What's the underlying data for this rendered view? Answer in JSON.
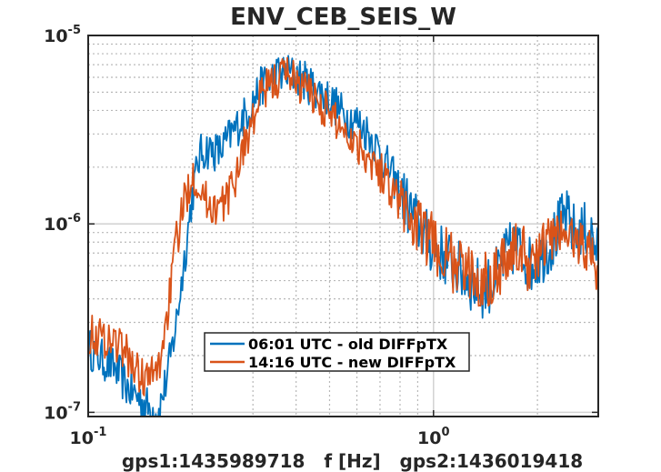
{
  "chart_data": {
    "type": "line",
    "title": "ENV_CEB_SEIS_W",
    "xlabel": "gps1:1435989718   f [Hz]   gps2:1436019418",
    "ylabel": "",
    "xscale": "log",
    "yscale": "log",
    "xlim": [
      0.1,
      3.0
    ],
    "ylim": [
      9.5e-08,
      1e-05
    ],
    "x_ticks": [
      {
        "value": 0.1,
        "base": "10",
        "exp": "-1"
      },
      {
        "value": 1.0,
        "base": "10",
        "exp": "0"
      }
    ],
    "y_ticks": [
      {
        "value": 1e-07,
        "base": "10",
        "exp": "-7"
      },
      {
        "value": 1e-06,
        "base": "10",
        "exp": "-6"
      },
      {
        "value": 1e-05,
        "base": "10",
        "exp": "-5"
      }
    ],
    "grid": true,
    "legend_position": "lower-center",
    "series": [
      {
        "name": "06:01 UTC - old DIFFpTX",
        "color": "#0072BD",
        "x": [
          0.1,
          0.11,
          0.12,
          0.13,
          0.14,
          0.15,
          0.16,
          0.17,
          0.18,
          0.19,
          0.2,
          0.21,
          0.22,
          0.24,
          0.26,
          0.28,
          0.3,
          0.32,
          0.35,
          0.38,
          0.41,
          0.45,
          0.5,
          0.55,
          0.6,
          0.65,
          0.7,
          0.75,
          0.8,
          0.85,
          0.9,
          0.95,
          1.0,
          1.05,
          1.1,
          1.2,
          1.3,
          1.4,
          1.5,
          1.6,
          1.7,
          1.8,
          1.9,
          2.0,
          2.2,
          2.4,
          2.6,
          2.8,
          3.0
        ],
        "y": [
          2.2e-07,
          1.9e-07,
          1.7e-07,
          1.35e-07,
          1.2e-07,
          1.05e-07,
          1e-07,
          1.6e-07,
          3e-07,
          6.5e-07,
          1.4e-06,
          2.3e-06,
          2.5e-06,
          2.4e-06,
          3e-06,
          3.6e-06,
          4.5e-06,
          5.5e-06,
          6.2e-06,
          6.3e-06,
          6e-06,
          5.3e-06,
          4.6e-06,
          3.8e-06,
          3.5e-06,
          3e-06,
          2.4e-06,
          1.9e-06,
          1.5e-06,
          1.2e-06,
          1e-06,
          8.5e-07,
          7.5e-07,
          7e-07,
          6.5e-07,
          5.5e-07,
          4.8e-07,
          4.5e-07,
          5e-07,
          6.5e-07,
          7.5e-07,
          7.2e-07,
          6e-07,
          6.5e-07,
          8e-07,
          1.1e-06,
          8.5e-07,
          9.5e-07,
          7e-07
        ]
      },
      {
        "name": "14:16 UTC - new DIFFpTX",
        "color": "#D95319",
        "x": [
          0.1,
          0.11,
          0.12,
          0.13,
          0.14,
          0.15,
          0.16,
          0.17,
          0.18,
          0.19,
          0.2,
          0.21,
          0.22,
          0.24,
          0.26,
          0.28,
          0.3,
          0.32,
          0.35,
          0.38,
          0.41,
          0.45,
          0.5,
          0.55,
          0.6,
          0.65,
          0.7,
          0.75,
          0.8,
          0.85,
          0.9,
          0.95,
          1.0,
          1.05,
          1.1,
          1.2,
          1.3,
          1.4,
          1.5,
          1.6,
          1.7,
          1.8,
          1.9,
          2.0,
          2.2,
          2.4,
          2.6,
          2.8,
          3.0
        ],
        "y": [
          2.6e-07,
          2.5e-07,
          2.4e-07,
          2e-07,
          1.6e-07,
          1.5e-07,
          1.7e-07,
          3.5e-07,
          8e-07,
          1.3e-06,
          1.9e-06,
          1.6e-06,
          1.3e-06,
          1.2e-06,
          1.5e-06,
          2.5e-06,
          3.5e-06,
          5e-06,
          5.8e-06,
          6.5e-06,
          5.5e-06,
          4.8e-06,
          3.8e-06,
          3.2e-06,
          2.7e-06,
          2.3e-06,
          1.9e-06,
          1.6e-06,
          1.3e-06,
          1.1e-06,
          9.5e-07,
          8.5e-07,
          8e-07,
          7e-07,
          6.5e-07,
          5.8e-07,
          5.2e-07,
          5e-07,
          5.5e-07,
          6.5e-07,
          7.2e-07,
          7e-07,
          6.2e-07,
          6.8e-07,
          8.5e-07,
          9e-07,
          8e-07,
          7.5e-07,
          5.5e-07
        ]
      }
    ]
  }
}
